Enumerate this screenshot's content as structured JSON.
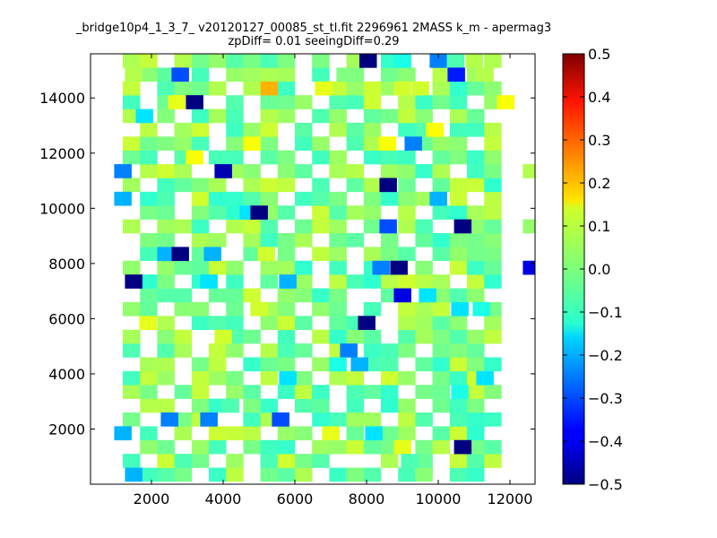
{
  "chart_data": {
    "type": "heatmap",
    "title": "_bridge10p4_1_3_7_ v20120127_00085_st_tl.fit 2296961 2MASS k_m - apermag3",
    "subtitle": "zpDiff= 0.01 seeingDiff=0.29",
    "xlabel": "",
    "ylabel": "",
    "xlim": [
      300,
      12700
    ],
    "ylim": [
      0,
      15600
    ],
    "x_ticks": [
      2000,
      4000,
      6000,
      8000,
      10000,
      12000
    ],
    "y_ticks": [
      2000,
      4000,
      6000,
      8000,
      10000,
      12000,
      14000
    ],
    "x_tick_labels": [
      "2000",
      "4000",
      "6000",
      "8000",
      "10000",
      "12000"
    ],
    "y_tick_labels": [
      "2000",
      "4000",
      "6000",
      "8000",
      "10000",
      "12000",
      "14000"
    ],
    "grid": false,
    "colormap": "jet",
    "clim": [
      -0.5,
      0.5
    ],
    "colorbar_ticks": [
      -0.5,
      -0.4,
      -0.3,
      -0.2,
      -0.1,
      0.0,
      0.1,
      0.2,
      0.3,
      0.4,
      0.5
    ],
    "colorbar_tick_labels": [
      "−0.5",
      "−0.4",
      "−0.3",
      "−0.2",
      "−0.1",
      "0.0",
      "0.1",
      "0.2",
      "0.3",
      "0.4",
      "0.5"
    ],
    "bin_size": [
      480,
      500
    ],
    "cells": [
      [
        8040,
        15350,
        -0.5
      ],
      [
        9000,
        15350,
        -0.1
      ],
      [
        10000,
        15350,
        -0.25
      ],
      [
        10480,
        15350,
        -0.05
      ],
      [
        11000,
        15350,
        0.05
      ],
      [
        1500,
        14850,
        0.05
      ],
      [
        2800,
        14850,
        -0.3
      ],
      [
        7400,
        14850,
        0.0
      ],
      [
        10500,
        14850,
        -0.35
      ],
      [
        11300,
        14850,
        0.05
      ],
      [
        5280,
        14350,
        0.2
      ],
      [
        6800,
        14350,
        0.1
      ],
      [
        9000,
        14350,
        0.08
      ],
      [
        9500,
        14350,
        0.08
      ],
      [
        3200,
        13850,
        -0.5
      ],
      [
        2700,
        13850,
        0.1
      ],
      [
        11880,
        13850,
        0.12
      ],
      [
        1800,
        13350,
        -0.15
      ],
      [
        9900,
        12850,
        0.12
      ],
      [
        4800,
        12350,
        0.12
      ],
      [
        8580,
        12350,
        0.12
      ],
      [
        9300,
        12350,
        -0.25
      ],
      [
        3200,
        11850,
        0.12
      ],
      [
        1200,
        11350,
        -0.25
      ],
      [
        4000,
        11350,
        -0.45
      ],
      [
        12600,
        11350,
        0.05
      ],
      [
        8600,
        10850,
        -0.5
      ],
      [
        10000,
        10350,
        -0.2
      ],
      [
        1200,
        10350,
        -0.2
      ],
      [
        4700,
        9850,
        -0.15
      ],
      [
        5000,
        9850,
        -0.5
      ],
      [
        8600,
        9350,
        -0.3
      ],
      [
        10680,
        9350,
        -0.5
      ],
      [
        12600,
        9350,
        0.02
      ],
      [
        2400,
        8350,
        -0.2
      ],
      [
        2800,
        8350,
        -0.5
      ],
      [
        3700,
        8350,
        -0.2
      ],
      [
        5200,
        8350,
        0.08
      ],
      [
        12600,
        7850,
        -0.4
      ],
      [
        8400,
        7850,
        -0.25
      ],
      [
        8900,
        7850,
        -0.5
      ],
      [
        1500,
        7350,
        -0.5
      ],
      [
        3600,
        7350,
        -0.15
      ],
      [
        5800,
        7350,
        -0.2
      ],
      [
        9000,
        6850,
        -0.4
      ],
      [
        9700,
        6850,
        -0.15
      ],
      [
        5000,
        6350,
        0.08
      ],
      [
        10600,
        6350,
        -0.15
      ],
      [
        11200,
        6350,
        -0.1
      ],
      [
        8000,
        5850,
        -0.5
      ],
      [
        1900,
        5850,
        0.1
      ],
      [
        4000,
        5350,
        0.08
      ],
      [
        7500,
        4850,
        -0.25
      ],
      [
        7800,
        4350,
        -0.2
      ],
      [
        7200,
        4350,
        -0.1
      ],
      [
        5800,
        3850,
        -0.15
      ],
      [
        11300,
        3850,
        -0.15
      ],
      [
        10600,
        3350,
        -0.1
      ],
      [
        2500,
        2350,
        -0.25
      ],
      [
        3600,
        2350,
        -0.25
      ],
      [
        5600,
        2350,
        -0.3
      ],
      [
        4200,
        2850,
        -0.05
      ],
      [
        1200,
        1850,
        -0.2
      ],
      [
        8200,
        1850,
        -0.15
      ],
      [
        7000,
        1850,
        0.1
      ],
      [
        9000,
        1350,
        0.1
      ],
      [
        10680,
        1350,
        -0.5
      ],
      [
        1500,
        350,
        -0.2
      ],
      [
        9200,
        850,
        -0.05
      ]
    ],
    "empty_cells": [
      [
        2300,
        15350
      ],
      [
        6000,
        15350
      ],
      [
        7000,
        15350
      ],
      [
        9400,
        15350
      ],
      [
        12000,
        15350
      ],
      [
        1200,
        14850
      ],
      [
        3700,
        14850
      ],
      [
        6200,
        14850
      ],
      [
        8000,
        14850
      ],
      [
        9800,
        14850
      ],
      [
        11700,
        14850
      ],
      [
        2000,
        14350
      ],
      [
        4300,
        14350
      ],
      [
        6300,
        14350
      ],
      [
        11800,
        14350
      ],
      [
        12300,
        14350
      ],
      [
        1900,
        13850
      ],
      [
        3800,
        13850
      ],
      [
        4800,
        13850
      ],
      [
        6900,
        13850
      ],
      [
        8500,
        13850
      ],
      [
        10900,
        13850
      ],
      [
        12300,
        13850
      ],
      [
        2900,
        13350
      ],
      [
        4600,
        13350
      ],
      [
        6400,
        13350
      ],
      [
        7700,
        13350
      ],
      [
        10100,
        13350
      ],
      [
        11700,
        13350
      ],
      [
        12300,
        13350
      ],
      [
        1200,
        12850
      ],
      [
        2500,
        12850
      ],
      [
        4000,
        12850
      ],
      [
        5700,
        12850
      ],
      [
        6900,
        12850
      ],
      [
        8700,
        12850
      ],
      [
        11900,
        12850
      ],
      [
        12300,
        12850
      ],
      [
        3700,
        12350
      ],
      [
        5900,
        12350
      ],
      [
        7300,
        12350
      ],
      [
        10900,
        12350
      ],
      [
        12300,
        12350
      ],
      [
        2500,
        11850
      ],
      [
        4600,
        11850
      ],
      [
        6000,
        11850
      ],
      [
        7800,
        11850
      ],
      [
        9800,
        11850
      ],
      [
        11800,
        11850
      ],
      [
        12300,
        11850
      ],
      [
        3300,
        11350
      ],
      [
        5400,
        11350
      ],
      [
        6900,
        11350
      ],
      [
        8200,
        11350
      ],
      [
        10600,
        11350
      ],
      [
        2000,
        10850
      ],
      [
        4400,
        10850
      ],
      [
        6000,
        10850
      ],
      [
        7400,
        10850
      ],
      [
        9600,
        10850
      ],
      [
        11800,
        10850
      ],
      [
        12300,
        10850
      ],
      [
        2900,
        10350
      ],
      [
        5600,
        10350
      ],
      [
        7900,
        10350
      ],
      [
        11100,
        10350
      ],
      [
        12300,
        10350
      ],
      [
        1200,
        9850
      ],
      [
        3000,
        9850
      ],
      [
        6300,
        9850
      ],
      [
        8400,
        9850
      ],
      [
        9600,
        9850
      ],
      [
        11800,
        9850
      ],
      [
        2000,
        9350
      ],
      [
        3900,
        9350
      ],
      [
        5700,
        9350
      ],
      [
        7600,
        9350
      ],
      [
        9900,
        9350
      ],
      [
        11900,
        9350
      ],
      [
        1200,
        8850
      ],
      [
        3100,
        8850
      ],
      [
        4500,
        8850
      ],
      [
        6900,
        8850
      ],
      [
        8100,
        8850
      ],
      [
        9000,
        8850
      ],
      [
        11800,
        8850
      ],
      [
        12300,
        8850
      ],
      [
        1200,
        8350
      ],
      [
        4300,
        8350
      ],
      [
        6300,
        8350
      ],
      [
        7800,
        8350
      ],
      [
        9600,
        8350
      ],
      [
        11900,
        8350
      ],
      [
        1800,
        7850
      ],
      [
        4700,
        7850
      ],
      [
        6500,
        7850
      ],
      [
        7900,
        7850
      ],
      [
        10100,
        7850
      ],
      [
        11800,
        7850
      ],
      [
        2900,
        7350
      ],
      [
        5000,
        7350
      ],
      [
        6900,
        7350
      ],
      [
        10500,
        7350
      ],
      [
        11900,
        7350
      ],
      [
        12300,
        7350
      ],
      [
        1200,
        6850
      ],
      [
        3400,
        6850
      ],
      [
        5400,
        6850
      ],
      [
        7600,
        6850
      ],
      [
        8000,
        6850
      ],
      [
        11500,
        6850
      ],
      [
        12300,
        6850
      ],
      [
        2400,
        6350
      ],
      [
        3600,
        6350
      ],
      [
        6100,
        6350
      ],
      [
        7600,
        6350
      ],
      [
        8400,
        6350
      ],
      [
        11800,
        6350
      ],
      [
        12300,
        6350
      ],
      [
        1200,
        5850
      ],
      [
        3000,
        5850
      ],
      [
        4700,
        5850
      ],
      [
        6700,
        5850
      ],
      [
        8700,
        5850
      ],
      [
        11000,
        5850
      ],
      [
        12300,
        5850
      ],
      [
        1700,
        5350
      ],
      [
        3200,
        5350
      ],
      [
        5200,
        5350
      ],
      [
        6400,
        5350
      ],
      [
        8800,
        5350
      ],
      [
        11800,
        5350
      ],
      [
        12300,
        5350
      ],
      [
        2100,
        4850
      ],
      [
        3300,
        4850
      ],
      [
        4900,
        4850
      ],
      [
        6700,
        4850
      ],
      [
        9400,
        4850
      ],
      [
        11700,
        4850
      ],
      [
        12300,
        4850
      ],
      [
        1200,
        4350
      ],
      [
        2700,
        4350
      ],
      [
        4500,
        4350
      ],
      [
        6300,
        4350
      ],
      [
        8900,
        4350
      ],
      [
        11900,
        4350
      ],
      [
        12300,
        4350
      ],
      [
        3000,
        3850
      ],
      [
        5000,
        3850
      ],
      [
        6900,
        3850
      ],
      [
        8000,
        3850
      ],
      [
        9700,
        3850
      ],
      [
        12300,
        3850
      ],
      [
        2200,
        3350
      ],
      [
        3900,
        3350
      ],
      [
        5500,
        3350
      ],
      [
        7300,
        3350
      ],
      [
        8900,
        3350
      ],
      [
        11800,
        3350
      ],
      [
        12300,
        3350
      ],
      [
        1200,
        2850
      ],
      [
        2900,
        2850
      ],
      [
        5600,
        2850
      ],
      [
        7000,
        2850
      ],
      [
        8200,
        2850
      ],
      [
        9800,
        2850
      ],
      [
        11700,
        2850
      ],
      [
        12300,
        2850
      ],
      [
        1900,
        2350
      ],
      [
        4500,
        2350
      ],
      [
        6300,
        2350
      ],
      [
        8700,
        2350
      ],
      [
        10300,
        2350
      ],
      [
        11800,
        2350
      ],
      [
        12300,
        2350
      ],
      [
        2500,
        1850
      ],
      [
        3400,
        1850
      ],
      [
        5100,
        1850
      ],
      [
        6600,
        1850
      ],
      [
        9600,
        1850
      ],
      [
        11600,
        1850
      ],
      [
        12300,
        1850
      ],
      [
        1200,
        1350
      ],
      [
        3100,
        1350
      ],
      [
        4300,
        1350
      ],
      [
        6300,
        1350
      ],
      [
        11800,
        1350
      ],
      [
        12300,
        1350
      ],
      [
        1800,
        850
      ],
      [
        3600,
        850
      ],
      [
        4700,
        850
      ],
      [
        7000,
        850
      ],
      [
        7500,
        850
      ],
      [
        8000,
        850
      ],
      [
        10000,
        850
      ],
      [
        11900,
        850
      ],
      [
        12300,
        850
      ],
      [
        1200,
        350
      ],
      [
        3400,
        350
      ],
      [
        5000,
        350
      ],
      [
        6500,
        350
      ],
      [
        8400,
        350
      ],
      [
        10200,
        350
      ],
      [
        11700,
        350
      ],
      [
        12300,
        350
      ]
    ]
  }
}
